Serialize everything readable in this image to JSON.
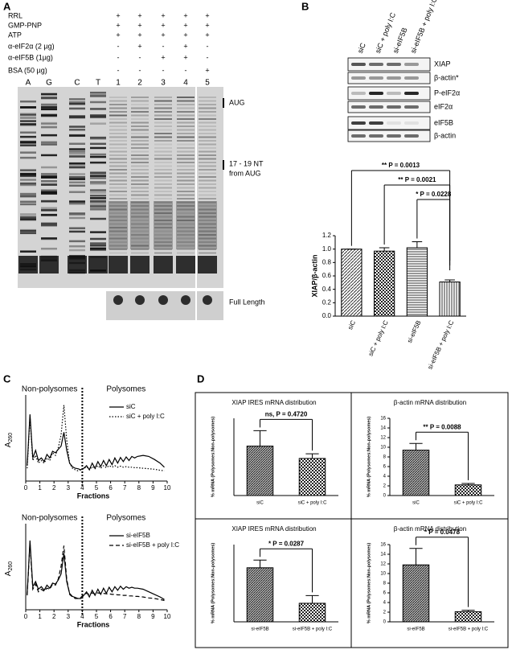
{
  "panel_a": {
    "letter": "A",
    "conditions": [
      {
        "label": "RRL",
        "marks": [
          "+",
          "+",
          "+",
          "+",
          "+"
        ]
      },
      {
        "label": "GMP-PNP",
        "marks": [
          "+",
          "+",
          "+",
          "+",
          "+"
        ]
      },
      {
        "label": "ATP",
        "marks": [
          "+",
          "+",
          "+",
          "+",
          "+"
        ]
      },
      {
        "label": "α-eIF2α (2 µg)",
        "marks": [
          "-",
          "+",
          "-",
          "+",
          "-"
        ]
      },
      {
        "label": "α-eIF5B (1µg)",
        "marks": [
          "-",
          "-",
          "+",
          "+",
          "-"
        ]
      },
      {
        "label": "BSA (50 µg)",
        "marks": [
          "-",
          "-",
          "-",
          "-",
          "+"
        ]
      }
    ],
    "lanes": [
      "A",
      "G",
      "C",
      "T",
      "1",
      "2",
      "3",
      "4",
      "5"
    ],
    "annotations": {
      "aug": "AUG",
      "nt": [
        "17 - 19 NT",
        "from AUG"
      ],
      "full_length": "Full Length"
    }
  },
  "panel_b": {
    "letter": "B",
    "samples": [
      "siC",
      "siC + poly I:C",
      "si-eIF5B",
      "si-eIF5B + poly I:C"
    ],
    "blots": [
      "XIAP",
      "β-actin*",
      "P-eIF2α",
      "eIF2α",
      "eIF5B",
      "β-actin"
    ],
    "chart_data": {
      "type": "bar",
      "ylabel": "XIAP/β-actin",
      "categories": [
        "siC",
        "siC + poly I:C",
        "si-eIF5B",
        "si-eIF5B + poly I:C"
      ],
      "values": [
        1.0,
        0.97,
        1.02,
        0.51
      ],
      "errors": [
        0,
        0.05,
        0.09,
        0.03
      ],
      "fills": [
        "diagonal",
        "checker",
        "horizontal",
        "vertical"
      ],
      "ylim": [
        0,
        1.2
      ],
      "yticks": [
        {
          "value": 0,
          "label": "0.0"
        },
        {
          "value": 0.2,
          "label": "0.2"
        },
        {
          "value": 0.4,
          "label": "0.4"
        },
        {
          "value": 0.6,
          "label": "0.6"
        },
        {
          "value": 0.8,
          "label": "0.8"
        },
        {
          "value": 1.0,
          "label": "1.0"
        },
        {
          "value": 1.2,
          "label": "1.2"
        }
      ],
      "annotations": [
        "** P = 0.0013",
        "** P = 0.0021",
        "* P = 0.0228"
      ]
    }
  },
  "panel_c": {
    "letter": "C",
    "chart_data": [
      {
        "type": "line",
        "region_labels": [
          "Non-polysomes",
          "Polysomes"
        ],
        "divider_x": 4,
        "xlabel": "Fractions",
        "ylabel": {
          "base": "A",
          "subscript": "260"
        },
        "x": [
          0.1,
          0.3,
          0.5,
          0.7,
          0.9,
          1.1,
          1.3,
          1.5,
          1.7,
          1.9,
          2.1,
          2.3,
          2.5,
          2.7,
          2.9,
          3.1,
          3.3,
          3.5,
          3.7,
          3.9,
          4.1,
          4.3,
          4.5,
          4.7,
          4.9,
          5.1,
          5.3,
          5.5,
          5.7,
          5.9,
          6.1,
          6.3,
          6.5,
          6.7,
          6.9,
          7.1,
          7.3,
          7.5,
          7.7,
          7.9,
          8.3,
          8.7,
          9.1,
          9.5,
          9.8
        ],
        "xlim": [
          0,
          10
        ],
        "xticks": [
          0,
          1,
          2,
          3,
          4,
          5,
          6,
          7,
          8,
          9,
          10
        ],
        "ylim": [
          0,
          160
        ],
        "series": [
          {
            "name": "siC",
            "color": "#000000",
            "style": "solid",
            "values": [
              30,
              130,
              45,
              60,
              40,
              45,
              38,
              52,
              45,
              58,
              55,
              62,
              68,
              95,
              60,
              35,
              28,
              25,
              24,
              22,
              25,
              30,
              22,
              35,
              25,
              38,
              28,
              40,
              30,
              42,
              32,
              45,
              35,
              46,
              38,
              47,
              40,
              48,
              45,
              48,
              50,
              48,
              42,
              35,
              27
            ]
          },
          {
            "name": "siC + poly I:C",
            "color": "#000000",
            "style": "dotted",
            "values": [
              25,
              125,
              40,
              50,
              35,
              40,
              35,
              45,
              40,
              55,
              50,
              65,
              90,
              148,
              80,
              35,
              25,
              22,
              20,
              22,
              24,
              28,
              22,
              28,
              24,
              30,
              25,
              30,
              26,
              30,
              27,
              30,
              27,
              29,
              27,
              28,
              27,
              27,
              26,
              26,
              25,
              24,
              23,
              21,
              20
            ]
          }
        ]
      },
      {
        "type": "line",
        "region_labels": [
          "Non-polysomes",
          "Polysomes"
        ],
        "divider_x": 4,
        "xlabel": "Fractions",
        "ylabel": {
          "base": "A",
          "subscript": "260"
        },
        "x": [
          0.1,
          0.3,
          0.5,
          0.7,
          0.9,
          1.1,
          1.3,
          1.5,
          1.7,
          1.9,
          2.1,
          2.3,
          2.5,
          2.7,
          2.9,
          3.1,
          3.3,
          3.5,
          3.7,
          3.9,
          4.1,
          4.3,
          4.5,
          4.7,
          4.9,
          5.1,
          5.3,
          5.5,
          5.7,
          5.9,
          6.1,
          6.3,
          6.5,
          6.7,
          6.9,
          7.1,
          7.3,
          7.5,
          7.7,
          7.9,
          8.3,
          8.7,
          9.1,
          9.5,
          9.8
        ],
        "xlim": [
          0,
          10
        ],
        "xticks": [
          0,
          1,
          2,
          3,
          4,
          5,
          6,
          7,
          8,
          9,
          10
        ],
        "ylim": [
          0,
          160
        ],
        "series": [
          {
            "name": "si-eIF5B",
            "color": "#000000",
            "style": "solid",
            "values": [
              30,
              135,
              45,
              55,
              40,
              45,
              38,
              48,
              42,
              52,
              50,
              58,
              70,
              110,
              55,
              32,
              26,
              24,
              22,
              22,
              28,
              35,
              25,
              38,
              28,
              40,
              30,
              42,
              32,
              44,
              35,
              45,
              38,
              46,
              40,
              45,
              42,
              44,
              42,
              42,
              40,
              35,
              30,
              25,
              20
            ]
          },
          {
            "name": "si-eIF5B + poly I:C",
            "color": "#000000",
            "style": "dashed",
            "values": [
              28,
              130,
              40,
              50,
              35,
              40,
              36,
              42,
              40,
              50,
              48,
              60,
              85,
              125,
              60,
              30,
              25,
              22,
              22,
              24,
              30,
              32,
              30,
              33,
              31,
              33,
              32,
              32,
              31,
              31,
              30,
              30,
              29,
              29,
              28,
              28,
              27,
              27,
              26,
              26,
              25,
              23,
              22,
              20,
              18
            ]
          }
        ]
      }
    ]
  },
  "panel_d": {
    "letter": "D",
    "chart_data": [
      {
        "type": "bar",
        "title": "XIAP IRES mRNA distribution",
        "ylabel": "% mRNA (Polysomes:Non-polysomes)",
        "categories": [
          "siC",
          "siC + poly I:C"
        ],
        "values": [
          3.2,
          2.4
        ],
        "errors": [
          1.0,
          0.3
        ],
        "fills": [
          "dense",
          "checker"
        ],
        "ylim": [
          0,
          5
        ],
        "annotation": "ns, P = 0.4720"
      },
      {
        "type": "bar",
        "title": "β-actin mRNA distribution",
        "ylabel": "% mRNA (Polysomes:Non-polysomes)",
        "categories": [
          "siC",
          "siC + poly I:C"
        ],
        "values": [
          9.4,
          2.2
        ],
        "errors": [
          1.4,
          0.3
        ],
        "fills": [
          "dense",
          "checker"
        ],
        "ylim": [
          0,
          16
        ],
        "yticks": [
          0,
          2,
          4,
          6,
          8,
          10,
          12,
          14,
          16
        ],
        "annotation": "** P = 0.0088"
      },
      {
        "type": "bar",
        "title": "XIAP IRES mRNA distribution",
        "ylabel": "% mRNA (Polysomes:Non-polysomes)",
        "categories": [
          "si-eIF5B",
          "si-eIF5B + poly I:C"
        ],
        "values": [
          3.5,
          1.2
        ],
        "errors": [
          0.5,
          0.5
        ],
        "fills": [
          "dense",
          "checker"
        ],
        "ylim": [
          0,
          5
        ],
        "annotation": "* P = 0.0287"
      },
      {
        "type": "bar",
        "title": "β-actin mRNA distribution",
        "ylabel": "% mRNA (Polysomes:Non-polysomes)",
        "categories": [
          "si-eIF5B",
          "si-eIF5B + poly I:C"
        ],
        "values": [
          11.8,
          2.1
        ],
        "errors": [
          3.4,
          0.3
        ],
        "fills": [
          "dense",
          "checker"
        ],
        "ylim": [
          0,
          16
        ],
        "yticks": [
          0,
          2,
          4,
          6,
          8,
          10,
          12,
          14,
          16
        ],
        "annotation": "* P = 0.0478"
      }
    ]
  }
}
